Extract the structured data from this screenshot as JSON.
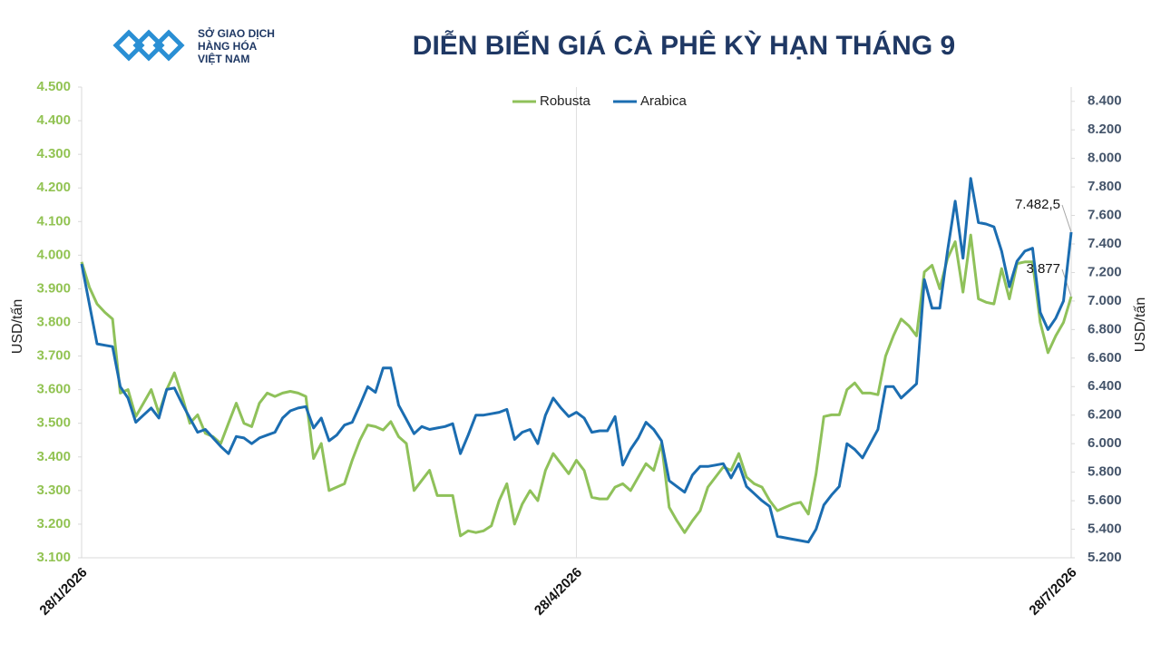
{
  "chart_data": {
    "type": "line",
    "title": "DIỄN BIẾN GIÁ CÀ PHÊ KỲ HẠN THÁNG 9",
    "logo": [
      "SỞ GIAO DỊCH",
      "HÀNG HÓA",
      "VIỆT NAM"
    ],
    "ylabel": "USD/tấn",
    "y2label": "USD/tấn",
    "legend": "top",
    "categories": [
      "28/1/2026",
      null,
      null,
      null,
      null,
      null,
      null,
      null,
      null,
      null,
      null,
      null,
      null,
      null,
      null,
      null,
      null,
      null,
      null,
      null,
      null,
      null,
      null,
      null,
      null,
      null,
      null,
      null,
      null,
      null,
      null,
      null,
      null,
      null,
      null,
      null,
      null,
      null,
      null,
      null,
      null,
      null,
      null,
      null,
      null,
      null,
      null,
      null,
      null,
      null,
      null,
      null,
      null,
      null,
      null,
      null,
      null,
      null,
      null,
      null,
      null,
      null,
      null,
      null,
      "28/4/2026",
      null,
      null,
      null,
      null,
      null,
      null,
      null,
      null,
      null,
      null,
      null,
      null,
      null,
      null,
      null,
      null,
      null,
      null,
      null,
      null,
      null,
      null,
      null,
      null,
      null,
      null,
      null,
      null,
      null,
      null,
      null,
      null,
      null,
      null,
      null,
      null,
      null,
      null,
      null,
      null,
      null,
      null,
      null,
      null,
      null,
      null,
      null,
      null,
      null,
      null,
      null,
      null,
      null,
      null,
      null,
      null,
      null,
      null,
      null,
      null,
      null,
      null,
      null,
      "28/7/2026"
    ],
    "series": [
      {
        "name": "Robusta",
        "color": "#8fc15a",
        "axis": "y",
        "values": [
          3980,
          3905,
          3855,
          3830,
          3810,
          3590,
          3600,
          3520,
          3560,
          3600,
          3530,
          3600,
          3650,
          3580,
          3500,
          3525,
          3470,
          3460,
          3440,
          3500,
          3560,
          3500,
          3490,
          3560,
          3590,
          3580,
          3590,
          3595,
          3590,
          3580,
          3395,
          3440,
          3300,
          3310,
          3320,
          3390,
          3450,
          3495,
          3490,
          3480,
          3505,
          3460,
          3440,
          3300,
          3330,
          3360,
          3285,
          3285,
          3285,
          3165,
          3180,
          3175,
          3180,
          3195,
          3270,
          3320,
          3200,
          3260,
          3300,
          3270,
          3360,
          3410,
          3380,
          3350,
          3390,
          3360,
          3280,
          3275,
          3275,
          3310,
          3320,
          3300,
          3340,
          3380,
          3360,
          3440,
          3250,
          3210,
          3175,
          3210,
          3240,
          3310,
          3340,
          3370,
          3360,
          3410,
          3340,
          3320,
          3310,
          3270,
          3240,
          3250,
          3260,
          3265,
          3230,
          3350,
          3520,
          3525,
          3525,
          3600,
          3620,
          3590,
          3590,
          3585,
          3700,
          3760,
          3810,
          3790,
          3760,
          3950,
          3970,
          3900,
          3990,
          4040,
          3890,
          4060,
          3870,
          3860,
          3855,
          3960,
          3870,
          3975,
          3980,
          3980,
          3800,
          3710,
          3760,
          3800,
          3877
        ],
        "value_labels": [
          null,
          null,
          null,
          null,
          null,
          null,
          null,
          null,
          null,
          null,
          null,
          null,
          null,
          null,
          null,
          null,
          null,
          null,
          null,
          null,
          null,
          null,
          null,
          null,
          null,
          null,
          null,
          null,
          null,
          null,
          null,
          null,
          null,
          null,
          null,
          null,
          null,
          null,
          null,
          null,
          null,
          null,
          null,
          null,
          null,
          null,
          null,
          null,
          null,
          null,
          null,
          null,
          null,
          null,
          null,
          null,
          null,
          null,
          null,
          null,
          null,
          null,
          null,
          null,
          null,
          null,
          null,
          null,
          null,
          null,
          null,
          null,
          null,
          null,
          null,
          null,
          null,
          null,
          null,
          null,
          null,
          null,
          null,
          null,
          null,
          null,
          null,
          null,
          null,
          null,
          null,
          null,
          null,
          null,
          null,
          null,
          null,
          null,
          null,
          null,
          null,
          null,
          null,
          null,
          null,
          null,
          null,
          null,
          null,
          null,
          null,
          null,
          null,
          null,
          null,
          null,
          null,
          null,
          null,
          null,
          null,
          null,
          null,
          null,
          null,
          null,
          null,
          null,
          "3.877"
        ]
      },
      {
        "name": "Arabica",
        "color": "#1b6db1",
        "axis": "y2",
        "values": [
          7260,
          6980,
          6700,
          6690,
          6680,
          6400,
          6320,
          6150,
          6200,
          6250,
          6180,
          6380,
          6390,
          6280,
          6180,
          6080,
          6100,
          6040,
          5980,
          5930,
          6050,
          6040,
          6000,
          6040,
          6060,
          6080,
          6180,
          6230,
          6250,
          6260,
          6110,
          6180,
          6020,
          6060,
          6130,
          6150,
          6270,
          6400,
          6360,
          6530,
          6530,
          6270,
          6170,
          6070,
          6120,
          6100,
          6110,
          6120,
          6140,
          5930,
          6060,
          6200,
          6200,
          6210,
          6220,
          6240,
          6030,
          6080,
          6100,
          6000,
          6200,
          6320,
          6250,
          6190,
          6220,
          6180,
          6080,
          6090,
          6090,
          6190,
          5850,
          5960,
          6040,
          6150,
          6100,
          6020,
          5740,
          5700,
          5660,
          5780,
          5840,
          5840,
          5850,
          5860,
          5760,
          5860,
          5700,
          5650,
          5600,
          5560,
          5350,
          5340,
          5330,
          5320,
          5310,
          5400,
          5570,
          5640,
          5700,
          6000,
          5960,
          5900,
          6000,
          6100,
          6400,
          6400,
          6320,
          6370,
          6420,
          7150,
          6950,
          6950,
          7350,
          7700,
          7300,
          7860,
          7550,
          7540,
          7520,
          7350,
          7100,
          7280,
          7350,
          7370,
          6920,
          6800,
          6880,
          7000,
          7482.5
        ],
        "value_labels": [
          null,
          null,
          null,
          null,
          null,
          null,
          null,
          null,
          null,
          null,
          null,
          null,
          null,
          null,
          null,
          null,
          null,
          null,
          null,
          null,
          null,
          null,
          null,
          null,
          null,
          null,
          null,
          null,
          null,
          null,
          null,
          null,
          null,
          null,
          null,
          null,
          null,
          null,
          null,
          null,
          null,
          null,
          null,
          null,
          null,
          null,
          null,
          null,
          null,
          null,
          null,
          null,
          null,
          null,
          null,
          null,
          null,
          null,
          null,
          null,
          null,
          null,
          null,
          null,
          null,
          null,
          null,
          null,
          null,
          null,
          null,
          null,
          null,
          null,
          null,
          null,
          null,
          null,
          null,
          null,
          null,
          null,
          null,
          null,
          null,
          null,
          null,
          null,
          null,
          null,
          null,
          null,
          null,
          null,
          null,
          null,
          null,
          null,
          null,
          null,
          null,
          null,
          null,
          null,
          null,
          null,
          null,
          null,
          null,
          null,
          null,
          null,
          null,
          null,
          null,
          null,
          null,
          null,
          null,
          null,
          null,
          null,
          null,
          null,
          null,
          null,
          null,
          null,
          "7.482,5"
        ]
      }
    ],
    "ylim": [
      3100,
      4500
    ],
    "yticks": [
      {
        "value": 3100,
        "label": "3.100"
      },
      {
        "value": 3200,
        "label": "3.200"
      },
      {
        "value": 3300,
        "label": "3.300"
      },
      {
        "value": 3400,
        "label": "3.400"
      },
      {
        "value": 3500,
        "label": "3.500"
      },
      {
        "value": 3600,
        "label": "3.600"
      },
      {
        "value": 3700,
        "label": "3.700"
      },
      {
        "value": 3800,
        "label": "3.800"
      },
      {
        "value": 3900,
        "label": "3.900"
      },
      {
        "value": 4000,
        "label": "4.000"
      },
      {
        "value": 4100,
        "label": "4.100"
      },
      {
        "value": 4200,
        "label": "4.200"
      },
      {
        "value": 4300,
        "label": "4.300"
      },
      {
        "value": 4400,
        "label": "4.400"
      },
      {
        "value": 4500,
        "label": "4.500"
      }
    ],
    "y2lim": [
      5200,
      8500
    ],
    "y2ticks": [
      {
        "value": 5200,
        "label": "5.200"
      },
      {
        "value": 5400,
        "label": "5.400"
      },
      {
        "value": 5600,
        "label": "5.600"
      },
      {
        "value": 5800,
        "label": "5.800"
      },
      {
        "value": 6000,
        "label": "6.000"
      },
      {
        "value": 6200,
        "label": "6.200"
      },
      {
        "value": 6400,
        "label": "6.400"
      },
      {
        "value": 6600,
        "label": "6.600"
      },
      {
        "value": 6800,
        "label": "6.800"
      },
      {
        "value": 7000,
        "label": "7.000"
      },
      {
        "value": 7200,
        "label": "7.200"
      },
      {
        "value": 7400,
        "label": "7.400"
      },
      {
        "value": 7600,
        "label": "7.600"
      },
      {
        "value": 7800,
        "label": "7.800"
      },
      {
        "value": 8000,
        "label": "8.000"
      },
      {
        "value": 8200,
        "label": "8.200"
      },
      {
        "value": 8400,
        "label": "8.400"
      }
    ]
  }
}
